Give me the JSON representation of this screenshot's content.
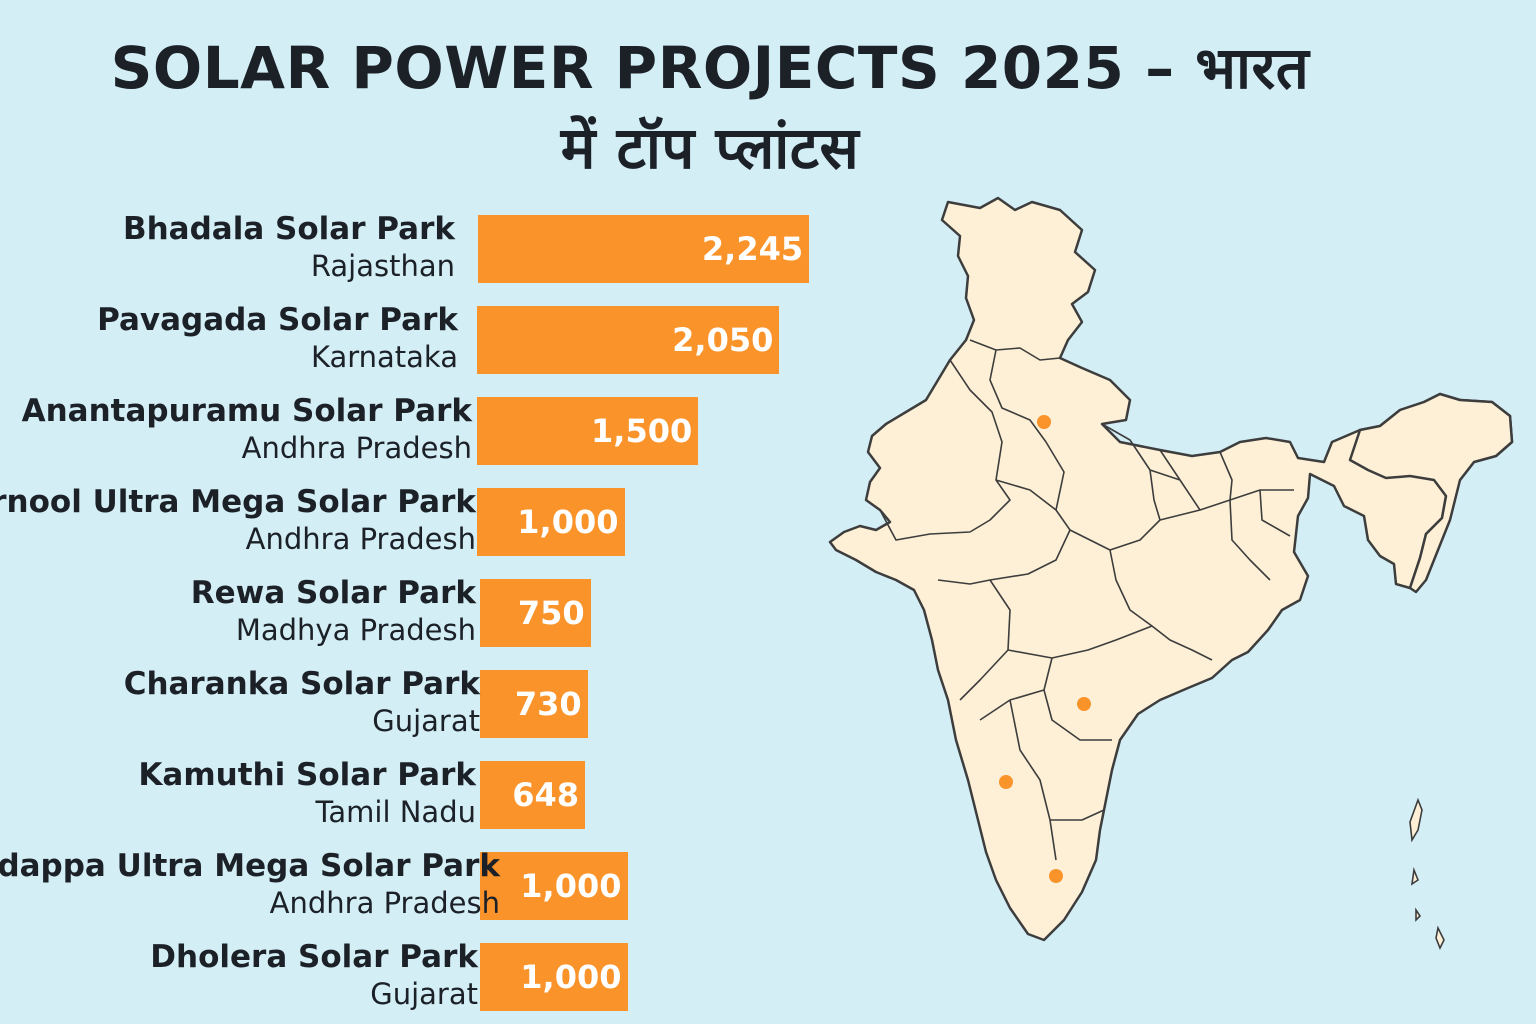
{
  "title": {
    "line1": "SOLAR POWER PROJECTS 2025 – भारत",
    "line2": "में टॉप प्लांटस"
  },
  "colors": {
    "background": "#d4eef6",
    "bar": "#fa932a",
    "map_fill": "#fdf0d6",
    "map_border": "#3d3d3d",
    "marker": "#fa932a"
  },
  "map": {
    "icon": "india-map-icon",
    "markers": 4
  },
  "chart_data": {
    "type": "bar",
    "orientation": "horizontal",
    "title": "SOLAR POWER PROJECTS 2025 – भारत में टॉप प्लांटस",
    "categories": [
      "Bhadala Solar Park",
      "Pavagada Solar Park",
      "Anantapuramu Solar Park",
      "Karnool Ultra Mega Solar Park",
      "Rewa Solar Park",
      "Charanka Solar Park",
      "Kamuthi Solar Park",
      "Kadappa Ultra Mega Solar Park",
      "Dholera Solar Park"
    ],
    "states": [
      "Rajasthan",
      "Karnataka",
      "Andhra Pradesh",
      "Andhra Pradesh",
      "Madhya Pradesh",
      "Gujarat",
      "Tamil Nadu",
      "Andhra Pradesh",
      "Gujarat"
    ],
    "values": [
      2245,
      2050,
      1500,
      1000,
      750,
      730,
      648,
      1000,
      1000
    ],
    "value_labels": [
      "2,245",
      "2,050",
      "1,500",
      "1,000",
      "750",
      "730",
      "648",
      "1,000",
      "1,000"
    ],
    "xlabel": "",
    "ylabel": "",
    "grid": false,
    "legend": "none"
  }
}
